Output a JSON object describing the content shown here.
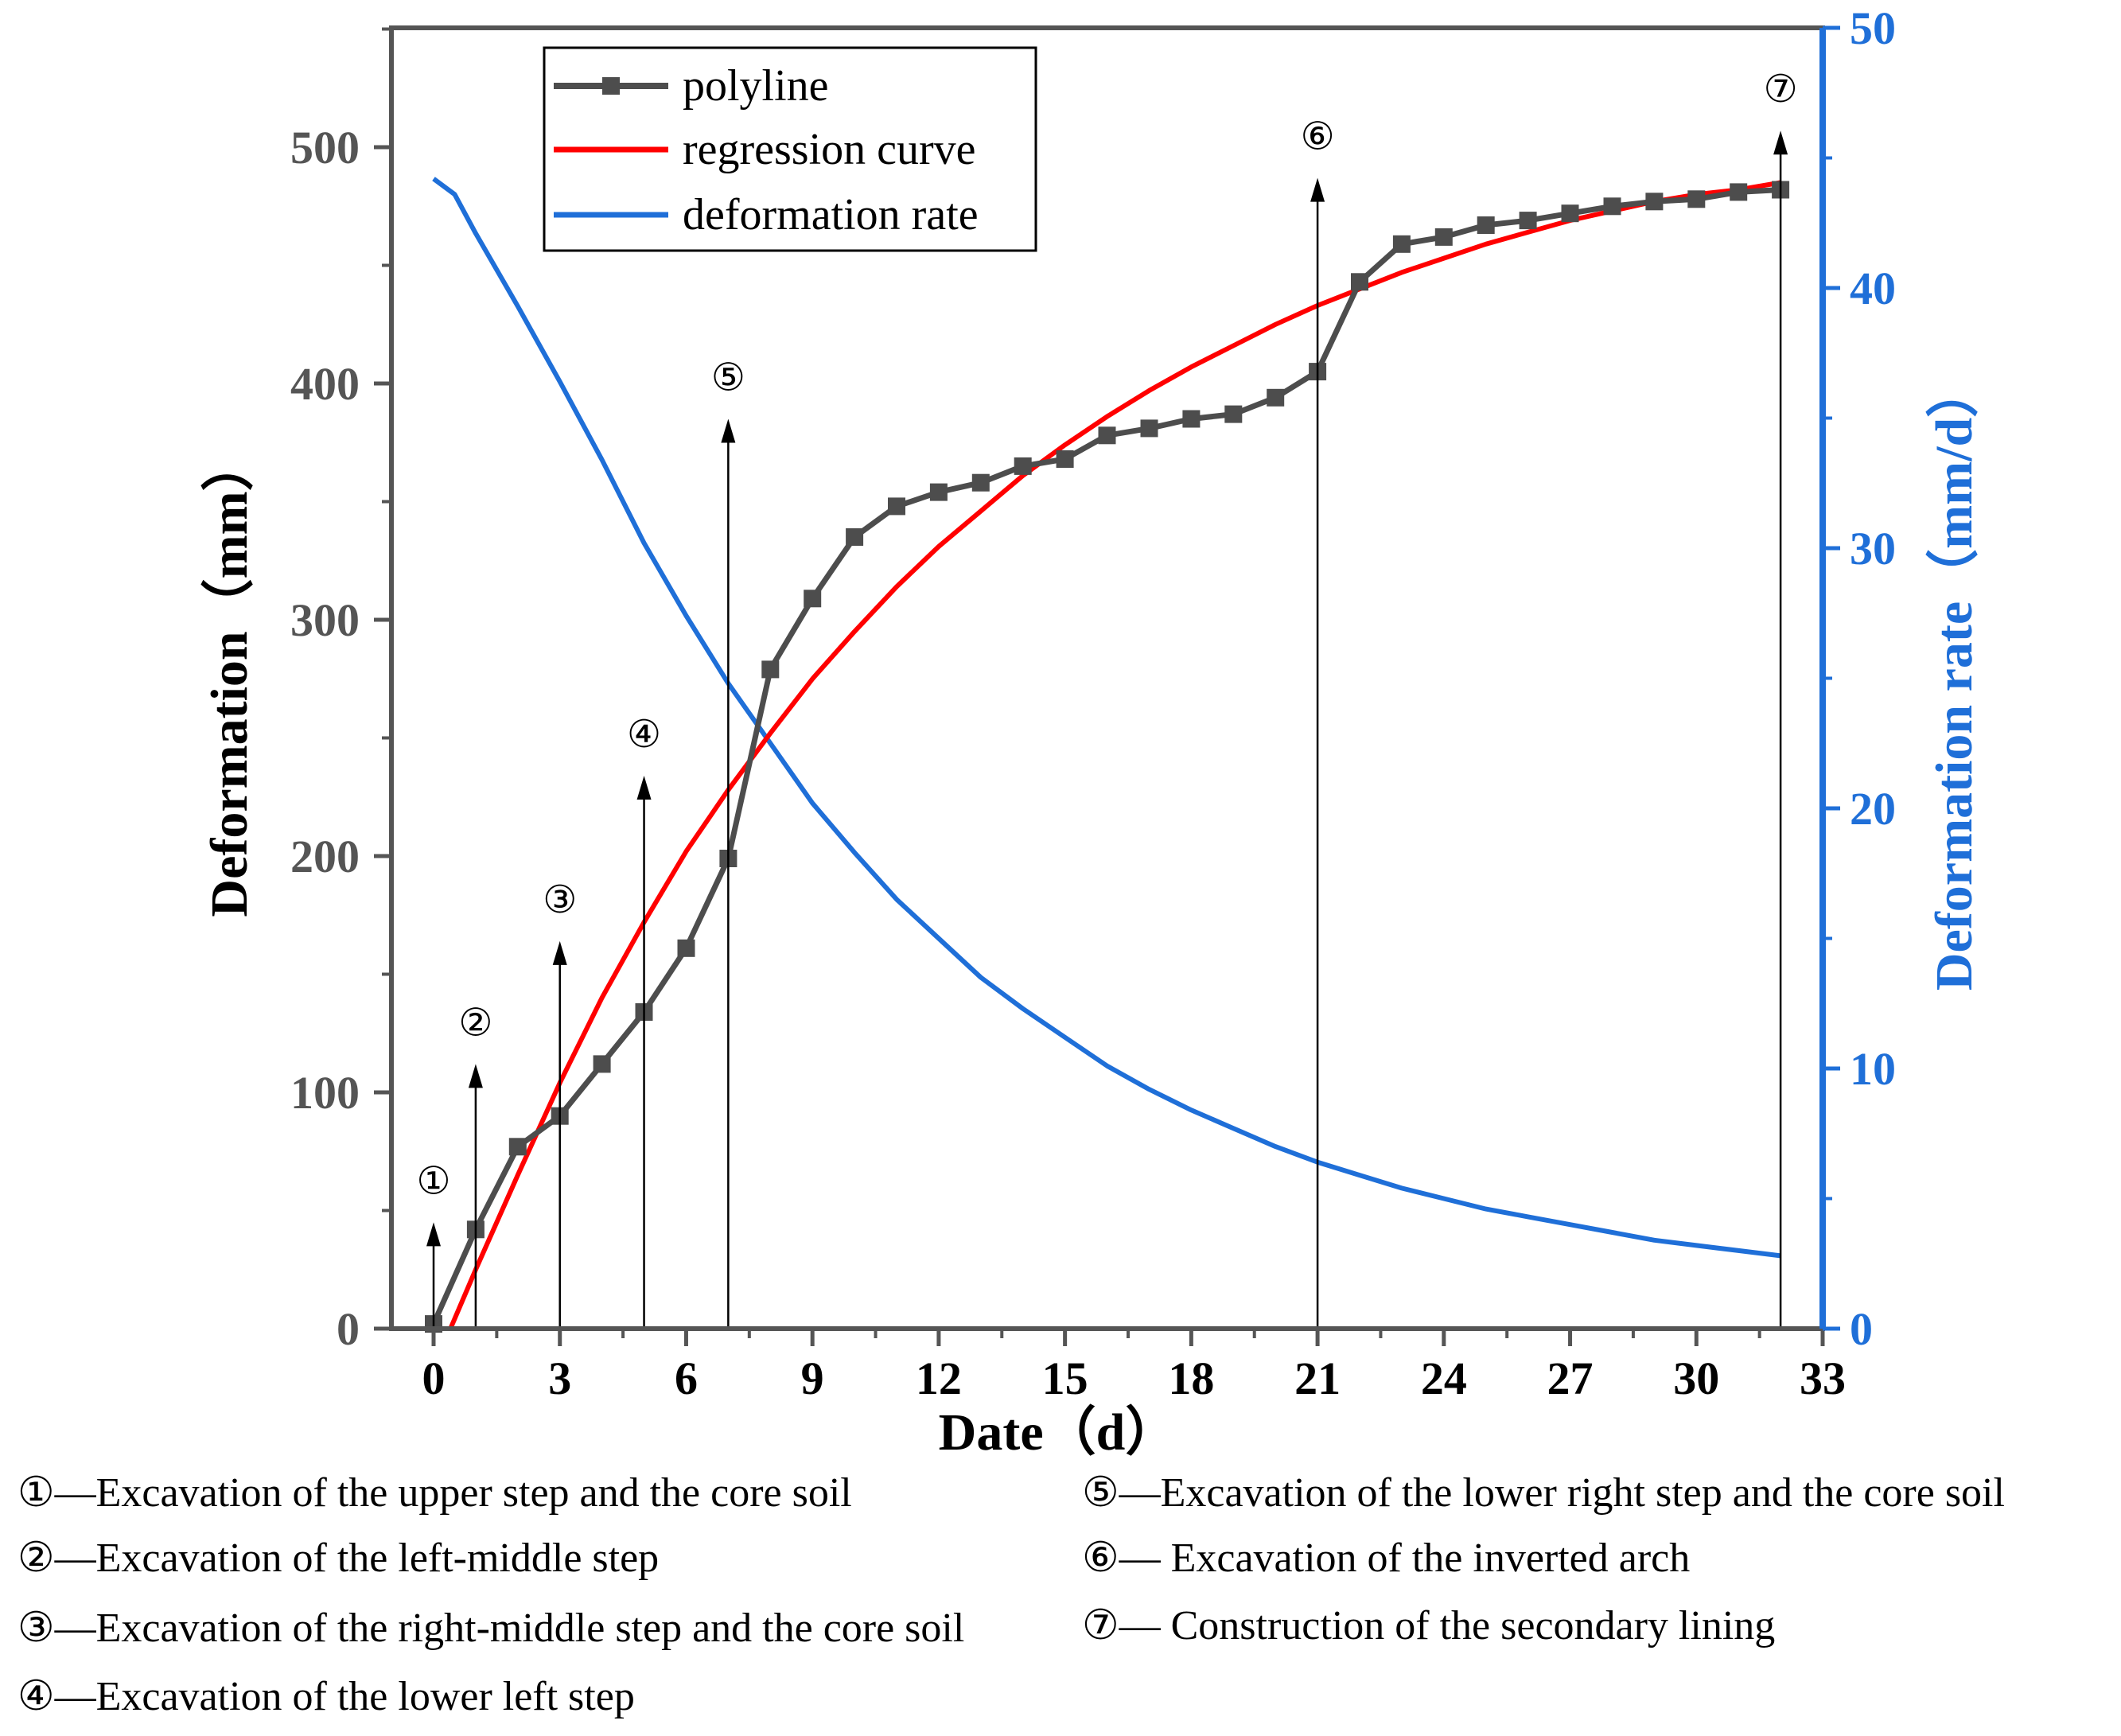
{
  "chart_data": {
    "type": "line",
    "title": "",
    "xlabel": "Date（d）",
    "ylabel": "Deformation（mm）",
    "y2label": "Deformation rate（mm/d）",
    "xlim": [
      -1,
      33
    ],
    "ylim": [
      0,
      550
    ],
    "y2lim": [
      0,
      50
    ],
    "xticks": [
      "0",
      "3",
      "6",
      "9",
      "12",
      "15",
      "18",
      "21",
      "24",
      "27",
      "30",
      "33"
    ],
    "xtick_values": [
      0,
      3,
      6,
      9,
      12,
      15,
      18,
      21,
      24,
      27,
      30,
      33
    ],
    "yticks": [
      "0",
      "100",
      "200",
      "300",
      "400",
      "500"
    ],
    "ytick_values": [
      0,
      100,
      200,
      300,
      400,
      500
    ],
    "y2ticks": [
      "0",
      "10",
      "20",
      "30",
      "40",
      "50"
    ],
    "y2tick_values": [
      0,
      10,
      20,
      30,
      40,
      50
    ],
    "legend": [
      "polyline",
      "regression curve",
      "deformation rate"
    ],
    "colors": {
      "polyline": "#4d4d4d",
      "regression": "#ff0000",
      "rate": "#1f6fd8"
    },
    "series": [
      {
        "name": "polyline",
        "axis": "left",
        "x": [
          0,
          1,
          2,
          3,
          4,
          5,
          6,
          7,
          8,
          9,
          10,
          11,
          12,
          13,
          14,
          15,
          16,
          17,
          18,
          19,
          20,
          21,
          22,
          23,
          24,
          25,
          26,
          27,
          28,
          29,
          30,
          31,
          32
        ],
        "values": [
          2,
          42,
          77,
          90,
          112,
          134,
          161,
          199,
          279,
          309,
          335,
          348,
          354,
          358,
          365,
          368,
          378,
          381,
          385,
          387,
          394,
          405,
          443,
          459,
          462,
          467,
          469,
          472,
          475,
          477,
          478,
          481,
          482
        ]
      },
      {
        "name": "regression curve",
        "axis": "left",
        "x": [
          0.4,
          1,
          2,
          3,
          4,
          5,
          6,
          7,
          8,
          9,
          10,
          11,
          12,
          13,
          14,
          15,
          16,
          17,
          18,
          19,
          20,
          21,
          22,
          23,
          24,
          25,
          26,
          27,
          28,
          29,
          30,
          31,
          32
        ],
        "values": [
          0,
          25,
          65,
          104,
          140,
          172,
          202,
          228,
          252,
          275,
          295,
          314,
          331,
          346,
          361,
          374,
          386,
          397,
          407,
          416,
          425,
          433,
          440,
          447,
          453,
          459,
          464,
          469,
          473,
          477,
          480,
          482,
          485
        ]
      },
      {
        "name": "deformation rate",
        "axis": "right",
        "x": [
          0,
          0.5,
          1,
          2,
          3,
          4,
          5,
          6,
          7,
          8,
          9,
          10,
          11,
          12,
          13,
          14,
          15,
          16,
          17,
          18,
          19,
          20,
          21,
          22,
          23,
          24,
          25,
          26,
          27,
          28,
          29,
          30,
          31,
          32
        ],
        "values": [
          44.2,
          43.6,
          42.1,
          39.3,
          36.4,
          33.4,
          30.2,
          27.4,
          24.8,
          22.5,
          20.2,
          18.3,
          16.5,
          15.0,
          13.5,
          12.3,
          11.2,
          10.1,
          9.2,
          8.4,
          7.7,
          7.0,
          6.4,
          5.9,
          5.4,
          5.0,
          4.6,
          4.3,
          4.0,
          3.7,
          3.4,
          3.2,
          3.0,
          2.8
        ]
      }
    ],
    "stage_markers": [
      {
        "label": "①",
        "x": 0,
        "top": 45
      },
      {
        "label": "②",
        "x": 1,
        "top": 112
      },
      {
        "label": "③",
        "x": 3,
        "top": 164
      },
      {
        "label": "④",
        "x": 5,
        "top": 234
      },
      {
        "label": "⑤",
        "x": 7,
        "top": 385
      },
      {
        "label": "⑥",
        "x": 21,
        "top": 487
      },
      {
        "label": "⑦",
        "x": 32,
        "top": 507
      }
    ]
  },
  "notes": [
    {
      "num": "①",
      "text": "—Excavation of the upper step and the core soil"
    },
    {
      "num": "②",
      "text": "—Excavation of the left-middle step"
    },
    {
      "num": "③",
      "text": "—Excavation of the right-middle step and the core soil"
    },
    {
      "num": "④",
      "text": "—Excavation of the lower left step"
    },
    {
      "num": "⑤",
      "text": "—Excavation of the lower right step and the core soil"
    },
    {
      "num": "⑥",
      "text": "— Excavation of the inverted arch"
    },
    {
      "num": "⑦",
      "text": "— Construction of the secondary lining"
    }
  ]
}
